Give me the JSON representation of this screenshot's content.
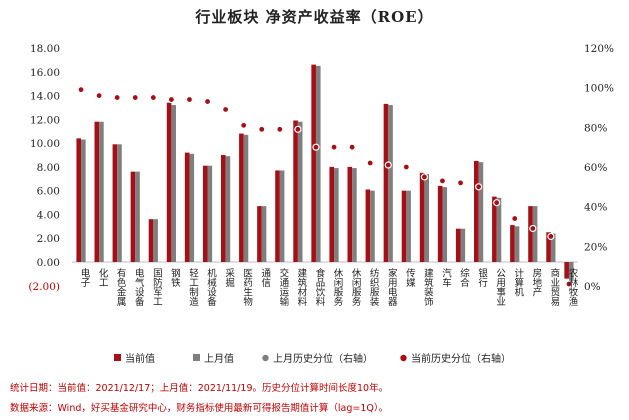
{
  "chart_data": {
    "type": "bar",
    "title": "行业板块 净资产收益率（ROE）",
    "categories": [
      "电子",
      "化工",
      "有色金属",
      "电气设备",
      "国防军工",
      "钢铁",
      "轻工制造",
      "机械设备",
      "采掘",
      "医药生物",
      "通信",
      "交通运输",
      "建筑材料",
      "食品饮料",
      "休闲服务",
      "休闲服务",
      "纺织服装",
      "家用电器",
      "传媒",
      "建筑装饰",
      "汽车",
      "综合",
      "银行",
      "公用事业",
      "计算机",
      "房地产",
      "商业贸易",
      "农林牧渔"
    ],
    "series": [
      {
        "name": "当前值",
        "axis": "left",
        "type": "bar",
        "color": "#a50f15",
        "values": [
          10.4,
          11.8,
          9.9,
          7.6,
          3.6,
          13.4,
          9.2,
          8.1,
          9.0,
          10.8,
          4.7,
          7.7,
          11.9,
          16.6,
          8.0,
          8.0,
          6.1,
          13.3,
          6.0,
          7.5,
          6.4,
          2.8,
          8.5,
          5.5,
          3.1,
          4.7,
          2.5,
          -1.4
        ]
      },
      {
        "name": "上月值",
        "axis": "left",
        "type": "bar",
        "color": "#7f7f7f",
        "values": [
          10.3,
          11.8,
          9.9,
          7.6,
          3.6,
          13.2,
          9.1,
          8.1,
          8.9,
          10.7,
          4.7,
          7.7,
          11.8,
          16.5,
          7.9,
          7.9,
          6.0,
          13.2,
          6.0,
          7.4,
          6.3,
          2.8,
          8.4,
          5.4,
          3.0,
          4.7,
          2.4,
          -1.5
        ]
      },
      {
        "name": "上月历史分位（右轴）",
        "axis": "right",
        "type": "scatter",
        "color": "#7f7f7f",
        "values": [
          99,
          96,
          95,
          95,
          95,
          94,
          94,
          93,
          89,
          81,
          79,
          79,
          79,
          70,
          70,
          70,
          62,
          61,
          60,
          55,
          53,
          52,
          50,
          42,
          34,
          29,
          25,
          1
        ]
      },
      {
        "name": "当前历史分位（右轴）",
        "axis": "right",
        "type": "scatter",
        "color": "#a50f15",
        "values": [
          99,
          96,
          95,
          95,
          95,
          94,
          94,
          93,
          89,
          81,
          79,
          79,
          79,
          70,
          70,
          70,
          62,
          61,
          60,
          55,
          53,
          52,
          50,
          42,
          34,
          29,
          25,
          1
        ]
      }
    ],
    "ylim_left": [
      -2,
      18
    ],
    "yticks_left": [
      "(2.00)",
      "0.00",
      "2.00",
      "4.00",
      "6.00",
      "8.00",
      "10.00",
      "12.00",
      "14.00",
      "16.00",
      "18.00"
    ],
    "ylim_right": [
      0,
      120
    ],
    "yticks_right": [
      "0%",
      "20%",
      "40%",
      "60%",
      "80%",
      "100%",
      "120%"
    ],
    "grid": false,
    "legend_position": "bottom"
  },
  "notes": {
    "line1": "统计日期：当前值：2021/12/17；上月值：2021/11/19。历史分位计算时间长度10年。",
    "line2": "数据来源：Wind，好买基金研究中心，财务指标使用最新可得报告期值计算（lag=1Q）。"
  },
  "colors": {
    "accent": "#a50f15",
    "secondary": "#7f7f7f"
  }
}
